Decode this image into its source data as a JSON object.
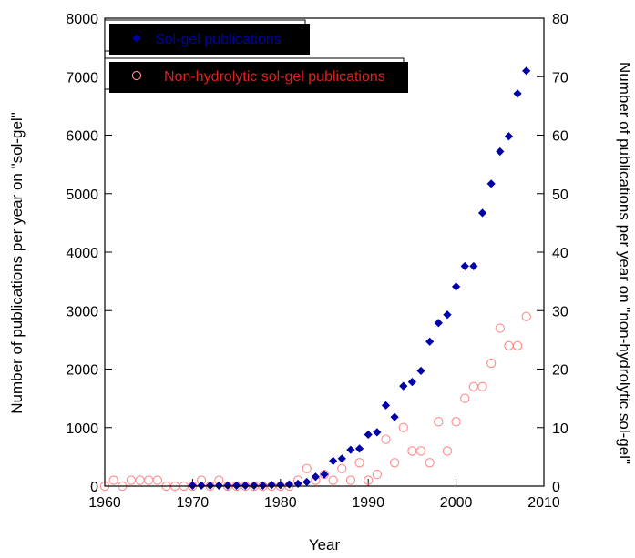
{
  "chart_data": {
    "type": "scatter",
    "xlabel": "Year",
    "ylabel": "Number of publications per year on \"sol-gel\"",
    "y2label": "Number of publications per year on \"non-hydrolytic sol-gel\"",
    "xlim": [
      1960,
      2010
    ],
    "ylim": [
      0,
      8000
    ],
    "y2lim": [
      0,
      80
    ],
    "xticks": [
      "1960",
      "1970",
      "1980",
      "1990",
      "2000",
      "2010"
    ],
    "yticks": [
      "0",
      "1000",
      "2000",
      "3000",
      "4000",
      "5000",
      "6000",
      "7000",
      "8000"
    ],
    "y2ticks": [
      "0",
      "10",
      "20",
      "30",
      "40",
      "50",
      "60",
      "70",
      "80"
    ],
    "grid": false,
    "legend_placement": "top-left",
    "series": [
      {
        "name": "Sol-gel publications",
        "axis": "left",
        "marker": "filled-diamond",
        "color": "#0000a8",
        "x": [
          1970,
          1971,
          1972,
          1973,
          1974,
          1975,
          1976,
          1977,
          1978,
          1979,
          1980,
          1981,
          1982,
          1983,
          1984,
          1985,
          1986,
          1987,
          1988,
          1989,
          1990,
          1991,
          1992,
          1993,
          1994,
          1995,
          1996,
          1997,
          1998,
          1999,
          2000,
          2001,
          2002,
          2003,
          2004,
          2005,
          2006,
          2007,
          2008
        ],
        "y": [
          10,
          10,
          10,
          10,
          10,
          10,
          10,
          10,
          10,
          20,
          20,
          30,
          40,
          70,
          160,
          200,
          430,
          470,
          620,
          640,
          880,
          920,
          1380,
          1180,
          1710,
          1780,
          1970,
          2470,
          2790,
          2930,
          3410,
          3760,
          3760,
          4670,
          5170,
          5720,
          5980,
          6710,
          7100
        ]
      },
      {
        "name": "Non-hydrolytic sol-gel publications",
        "axis": "right",
        "marker": "open-circle",
        "color": "#ff8c8c",
        "x": [
          1960,
          1961,
          1962,
          1963,
          1964,
          1965,
          1966,
          1967,
          1968,
          1969,
          1970,
          1971,
          1972,
          1973,
          1974,
          1975,
          1976,
          1977,
          1978,
          1979,
          1980,
          1981,
          1982,
          1983,
          1984,
          1985,
          1986,
          1987,
          1988,
          1989,
          1990,
          1991,
          1992,
          1993,
          1994,
          1995,
          1996,
          1997,
          1998,
          1999,
          2000,
          2001,
          2002,
          2003,
          2004,
          2005,
          2006,
          2007,
          2008
        ],
        "y": [
          0,
          1,
          0,
          1,
          1,
          1,
          1,
          0,
          0,
          0,
          0,
          1,
          0,
          1,
          0,
          0,
          0,
          0,
          0,
          0,
          0,
          0,
          1,
          3,
          1,
          2,
          1,
          3,
          1,
          4,
          1,
          2,
          8,
          4,
          10,
          6,
          6,
          4,
          11,
          6,
          11,
          15,
          17,
          17,
          21,
          27,
          24,
          24,
          29
        ]
      }
    ]
  }
}
